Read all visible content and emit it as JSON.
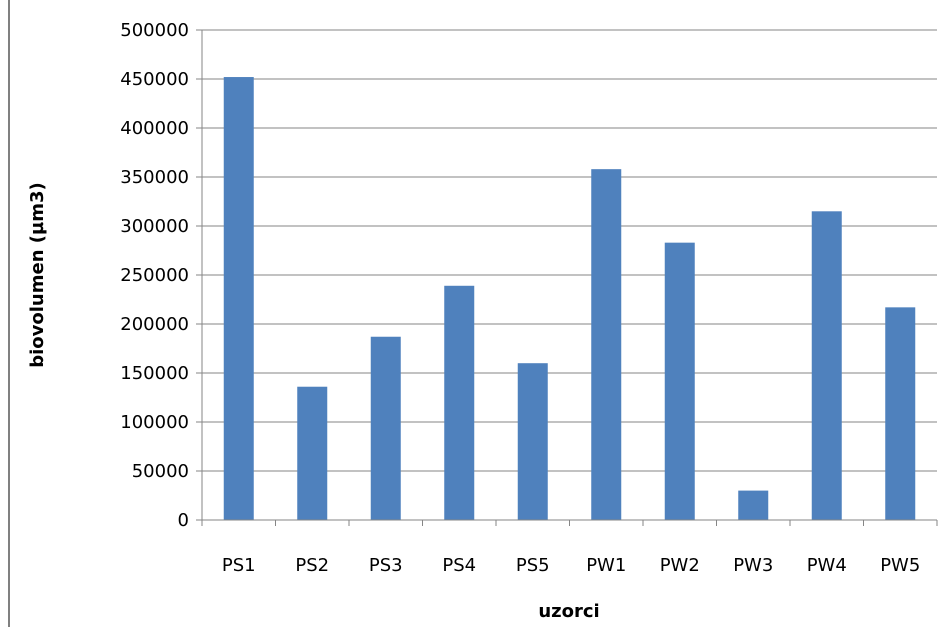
{
  "chart_data": {
    "type": "bar",
    "title": "",
    "xlabel": "uzorci",
    "ylabel": "biovolumen  (µm3)",
    "categories": [
      "PS1",
      "PS2",
      "PS3",
      "PS4",
      "PS5",
      "PW1",
      "PW2",
      "PW3",
      "PW4",
      "PW5"
    ],
    "values": [
      452000,
      136000,
      187000,
      239000,
      160000,
      358000,
      283000,
      30000,
      315000,
      217000
    ],
    "ylim": [
      0,
      500000
    ],
    "yticks": [
      "0",
      "50000",
      "100000",
      "150000",
      "200000",
      "250000",
      "300000",
      "350000",
      "400000",
      "450000",
      "500000"
    ],
    "grid": true,
    "legend": "none",
    "bar_color": "#4f81bd",
    "gridline_color": "#868686",
    "axis_color": "#868686"
  }
}
